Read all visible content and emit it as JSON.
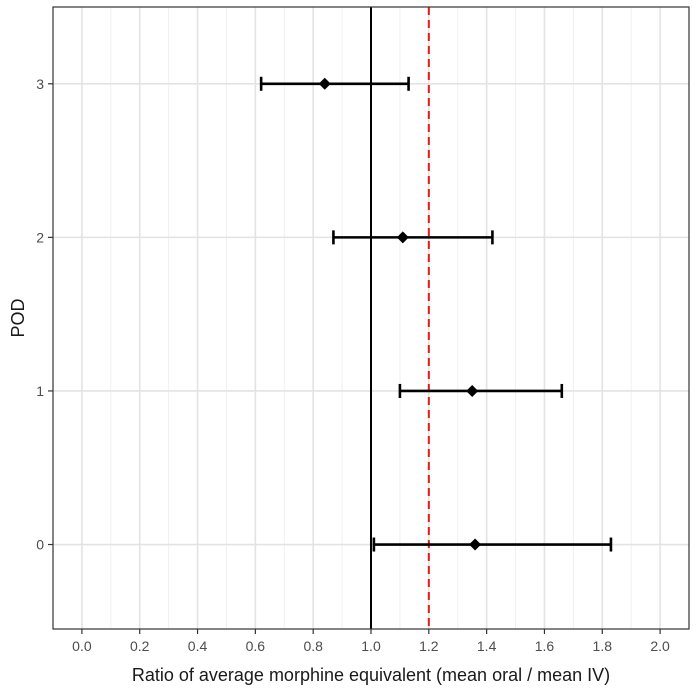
{
  "chart_data": {
    "type": "forest",
    "xlabel": "Ratio of average morphine equivalent (mean oral / mean IV)",
    "ylabel": "POD",
    "xlim": [
      -0.1,
      2.1
    ],
    "ylim": [
      -0.55,
      3.5
    ],
    "x_ticks": [
      "0.0",
      "0.2",
      "0.4",
      "0.6",
      "0.8",
      "1.0",
      "1.2",
      "1.4",
      "1.6",
      "1.8",
      "2.0"
    ],
    "y_ticks": [
      "0",
      "1",
      "2",
      "3"
    ],
    "reference_line": {
      "x": 1.0,
      "style": "solid",
      "color": "#000000"
    },
    "threshold_line": {
      "x": 1.2,
      "style": "dashed",
      "color": "#e41a1c"
    },
    "points": [
      {
        "pod": 3,
        "estimate": 0.84,
        "lower": 0.62,
        "upper": 1.13
      },
      {
        "pod": 2,
        "estimate": 1.11,
        "lower": 0.87,
        "upper": 1.42
      },
      {
        "pod": 1,
        "estimate": 1.35,
        "lower": 1.1,
        "upper": 1.66
      },
      {
        "pod": 0,
        "estimate": 1.36,
        "lower": 1.01,
        "upper": 1.83
      }
    ],
    "grid": true,
    "panel_border": true
  }
}
